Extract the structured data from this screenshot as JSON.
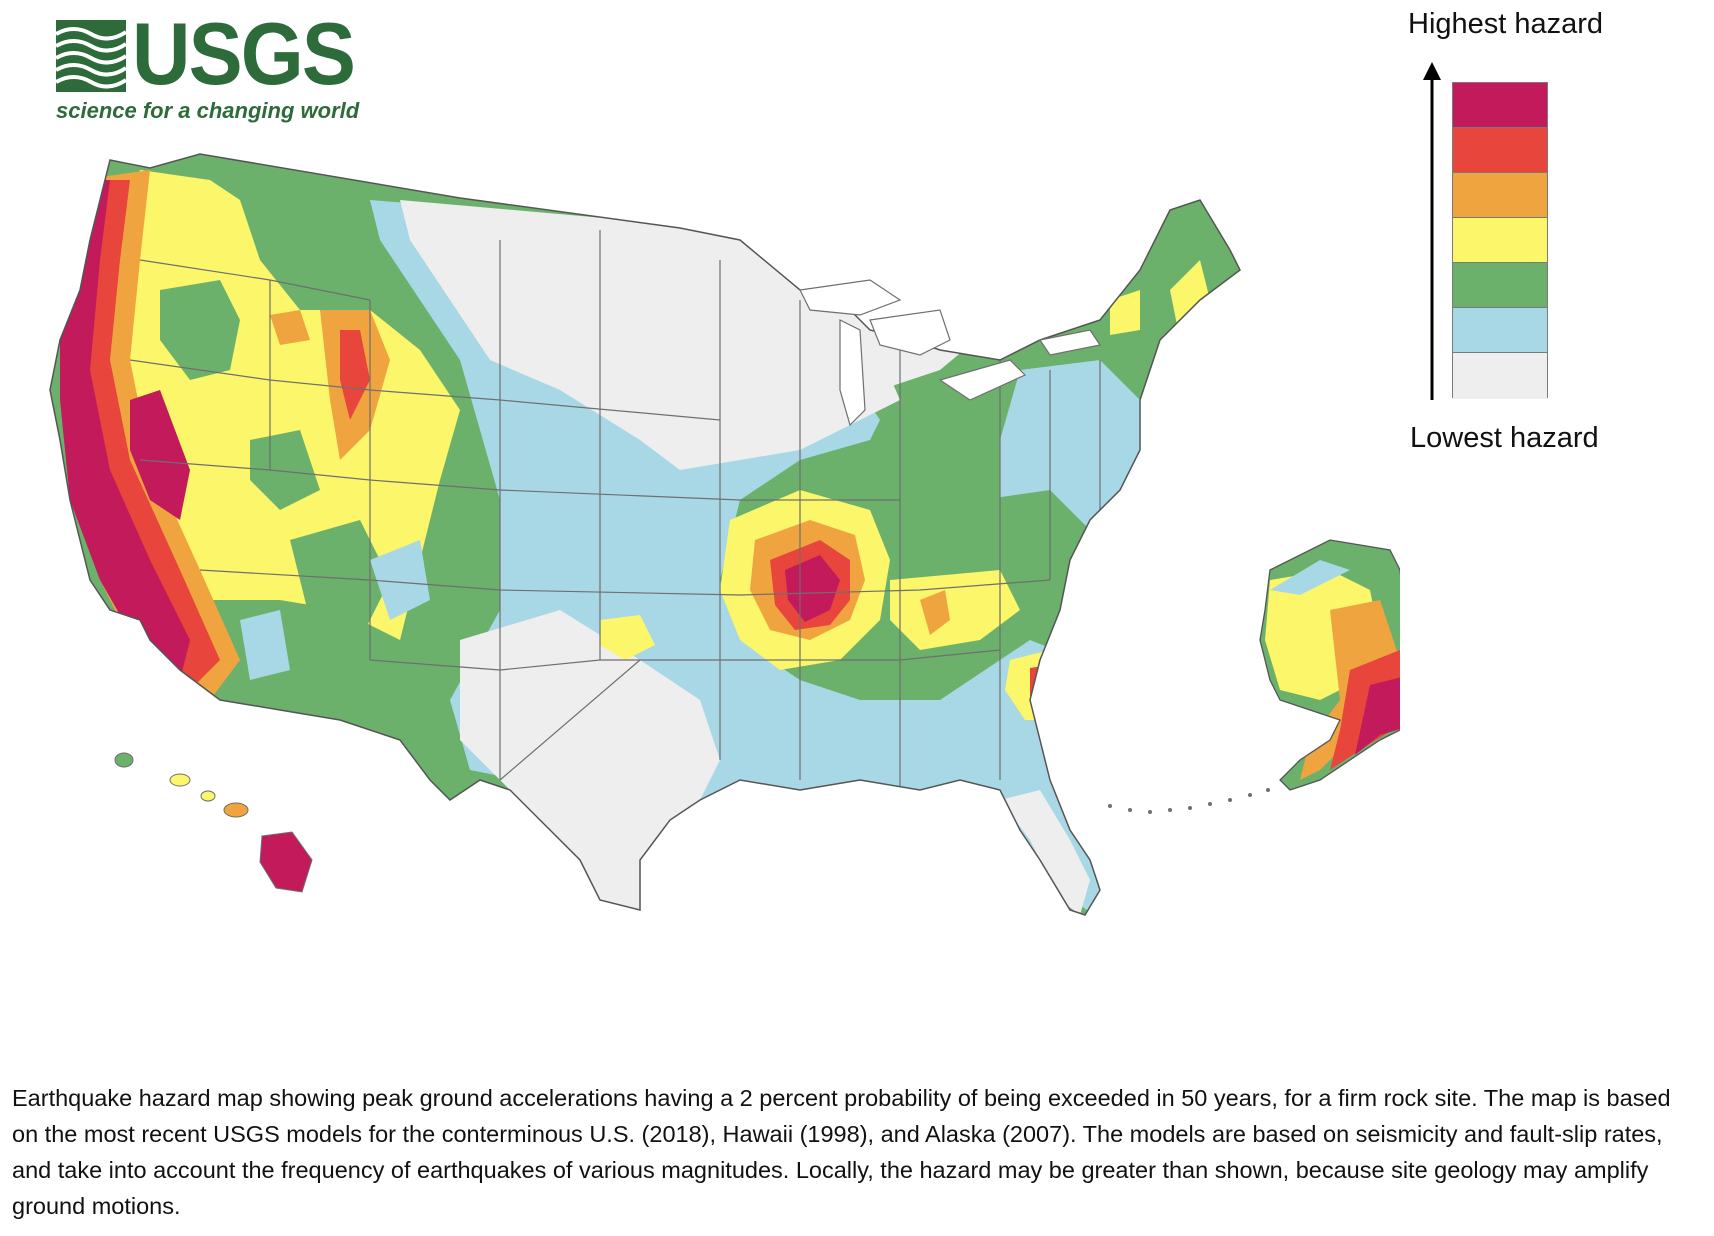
{
  "logo": {
    "wordmark": "USGS",
    "tagline": "science for a changing world",
    "color": "#2e6b3a"
  },
  "legend": {
    "high_label": "Highest hazard",
    "low_label": "Lowest hazard",
    "classes": [
      {
        "level": 7,
        "color": "#c21a5a"
      },
      {
        "level": 6,
        "color": "#e8453c"
      },
      {
        "level": 5,
        "color": "#f0a440"
      },
      {
        "level": 4,
        "color": "#fbf66a"
      },
      {
        "level": 3,
        "color": "#6bb16b"
      },
      {
        "level": 2,
        "color": "#a8d8e6"
      },
      {
        "level": 1,
        "color": "#eeeeee"
      }
    ]
  },
  "map": {
    "regions": [
      "conterminous U.S.",
      "Hawaii",
      "Alaska"
    ],
    "border_color": "#6f6f6f"
  },
  "caption": "Earthquake hazard map showing peak ground accelerations having a 2 percent probability of being exceeded in 50 years, for a firm rock site.  The map is based on the most recent USGS models for the conterminous U.S. (2018), Hawaii (1998), and Alaska (2007).  The models are based on seismicity and fault-slip rates, and take into account the frequency of earthquakes of various magnitudes.  Locally, the hazard may be greater than shown, because site geology may amplify ground motions."
}
